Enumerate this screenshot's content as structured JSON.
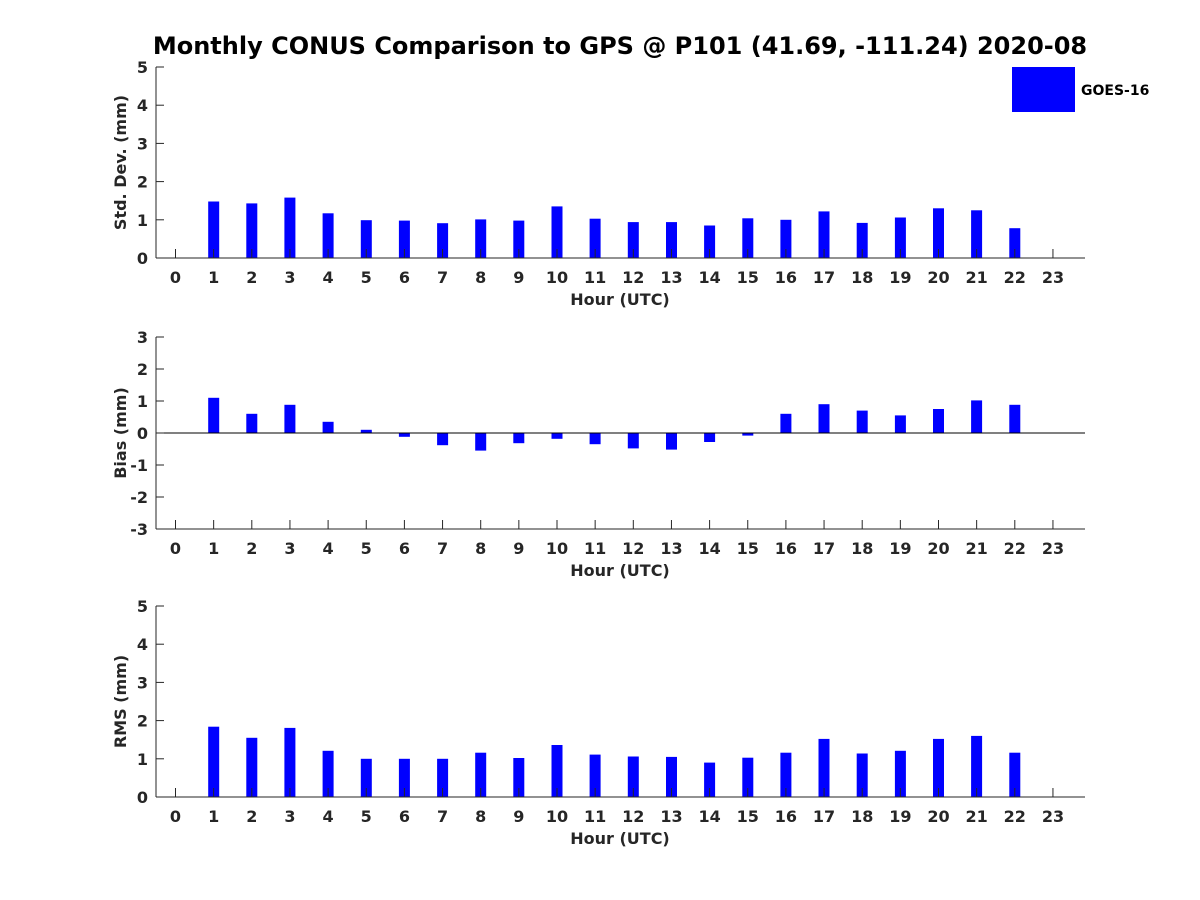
{
  "title": "Monthly CONUS Comparison to GPS @ P101 (41.69, -111.24) 2020-08",
  "legend": {
    "label": "GOES-16",
    "color": "#0000ff"
  },
  "chart_data": [
    {
      "type": "bar",
      "xlabel": "Hour (UTC)",
      "ylabel": "Std. Dev. (mm)",
      "ylim": [
        0,
        5
      ],
      "yticks": [
        "0",
        "1",
        "2",
        "3",
        "4",
        "5"
      ],
      "categories": [
        "0",
        "1",
        "2",
        "3",
        "4",
        "5",
        "6",
        "7",
        "8",
        "9",
        "10",
        "11",
        "12",
        "13",
        "14",
        "15",
        "16",
        "17",
        "18",
        "19",
        "20",
        "21",
        "22",
        "23"
      ],
      "series": [
        {
          "name": "GOES-16",
          "values": [
            null,
            1.48,
            1.43,
            1.58,
            1.17,
            0.99,
            0.98,
            0.91,
            1.01,
            0.98,
            1.35,
            1.03,
            0.94,
            0.94,
            0.85,
            1.04,
            1.0,
            1.22,
            0.92,
            1.06,
            1.3,
            1.25,
            0.78,
            null
          ]
        }
      ]
    },
    {
      "type": "bar",
      "xlabel": "Hour (UTC)",
      "ylabel": "Bias (mm)",
      "ylim": [
        -3,
        3
      ],
      "yticks": [
        "-3",
        "-2",
        "-1",
        "0",
        "1",
        "2",
        "3"
      ],
      "categories": [
        "0",
        "1",
        "2",
        "3",
        "4",
        "5",
        "6",
        "7",
        "8",
        "9",
        "10",
        "11",
        "12",
        "13",
        "14",
        "15",
        "16",
        "17",
        "18",
        "19",
        "20",
        "21",
        "22",
        "23"
      ],
      "series": [
        {
          "name": "GOES-16",
          "values": [
            null,
            1.1,
            0.6,
            0.88,
            0.35,
            0.1,
            -0.12,
            -0.38,
            -0.55,
            -0.32,
            -0.18,
            -0.35,
            -0.48,
            -0.52,
            -0.28,
            -0.08,
            0.6,
            0.9,
            0.7,
            0.55,
            0.75,
            1.02,
            0.88,
            null
          ]
        }
      ]
    },
    {
      "type": "bar",
      "xlabel": "Hour (UTC)",
      "ylabel": "RMS (mm)",
      "ylim": [
        0,
        5
      ],
      "yticks": [
        "0",
        "1",
        "2",
        "3",
        "4",
        "5"
      ],
      "categories": [
        "0",
        "1",
        "2",
        "3",
        "4",
        "5",
        "6",
        "7",
        "8",
        "9",
        "10",
        "11",
        "12",
        "13",
        "14",
        "15",
        "16",
        "17",
        "18",
        "19",
        "20",
        "21",
        "22",
        "23"
      ],
      "series": [
        {
          "name": "GOES-16",
          "values": [
            null,
            1.84,
            1.55,
            1.81,
            1.21,
            1.0,
            1.0,
            1.0,
            1.16,
            1.02,
            1.36,
            1.11,
            1.06,
            1.05,
            0.9,
            1.03,
            1.16,
            1.52,
            1.14,
            1.21,
            1.52,
            1.6,
            1.16,
            null
          ]
        }
      ]
    }
  ]
}
